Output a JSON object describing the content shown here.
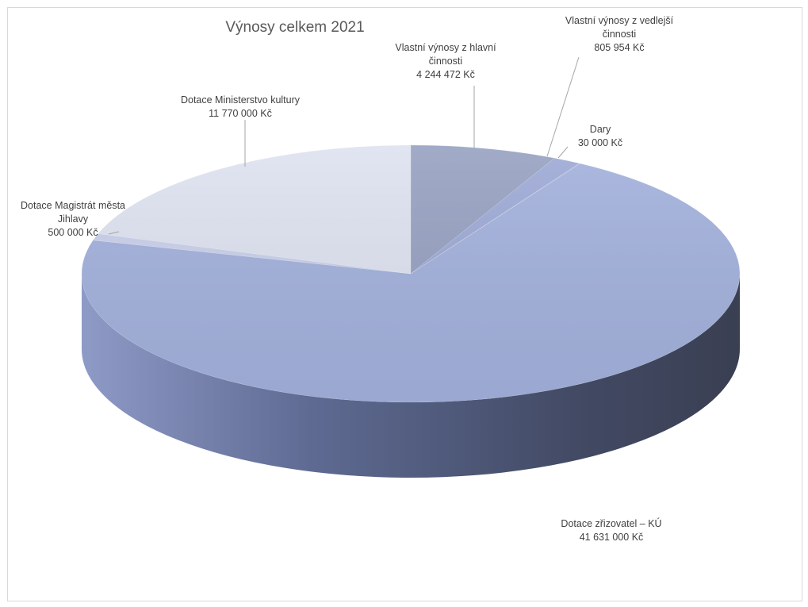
{
  "chart_data": {
    "type": "pie",
    "variant": "3d",
    "title": "Výnosy  celkem  2021",
    "unit": "Kč",
    "slices": [
      {
        "name": "Vlastní výnosy z hlavní činnosti",
        "label_lines": [
          "Vlastní výnosy z hlavní",
          "činnosti"
        ],
        "value": 4244472,
        "value_label": "4 244 472 Kč",
        "color": "#97a2c2"
      },
      {
        "name": "Vlastní výnosy z vedlejší činnosti",
        "label_lines": [
          "Vlastní výnosy z vedlejší",
          "činnosti"
        ],
        "value": 805954,
        "value_label": "805 954 Kč",
        "color": "#9eaad6"
      },
      {
        "name": "Dary",
        "label_lines": [
          "Dary"
        ],
        "value": 30000,
        "value_label": "30 000 Kč",
        "color": "#a4b0de"
      },
      {
        "name": "Dotace zřizovatel – KÚ",
        "label_lines": [
          "Dotace zřizovatel – KÚ"
        ],
        "value": 41631000,
        "value_label": "41 631 000 Kč",
        "color": "#a3b1dc"
      },
      {
        "name": "Dotace Magistrát města Jihlavy",
        "label_lines": [
          "Dotace Magistrát města",
          "Jihlavy"
        ],
        "value": 500000,
        "value_label": "500 000 Kč",
        "color": "#c9d0ea"
      },
      {
        "name": "Dotace Ministerstvo kultury",
        "label_lines": [
          "Dotace Ministerstvo kultury"
        ],
        "value": 11770000,
        "value_label": "11 770 000 Kč",
        "color": "#dee2f0"
      }
    ],
    "legend": "none",
    "data_labels": "outside-with-leader-lines"
  }
}
